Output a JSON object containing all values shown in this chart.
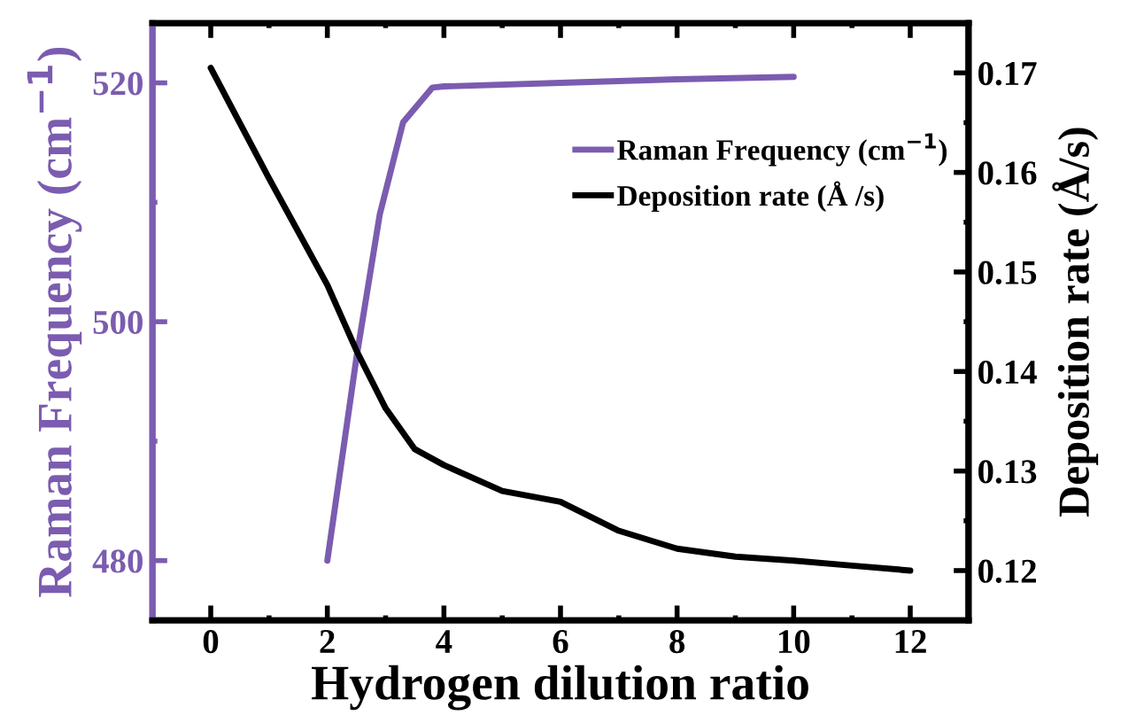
{
  "chart_data": {
    "type": "line",
    "xlabel": "Hydrogen dilution ratio",
    "ylabel": "Raman Frequency (cm$^{−1}$)",
    "y2label": "Deposition rate (Å/s)",
    "xlim": [
      -1,
      13
    ],
    "xticks": [
      0,
      2,
      4,
      6,
      8,
      10,
      12
    ],
    "ylim": [
      475,
      525
    ],
    "yticks": [
      480,
      500,
      520
    ],
    "y2lim": [
      0.115,
      0.175
    ],
    "y2ticks": [
      0.12,
      0.13,
      0.14,
      0.15,
      0.16,
      0.17
    ],
    "legend": "upper right",
    "grid": false,
    "marker": "none",
    "line_style": "solid",
    "series": [
      {
        "name": "Raman Frequency (cm$^{−1}$)",
        "color": "#7b5cb0",
        "x": [
          2,
          2.5,
          2.9,
          3.3,
          3.8,
          4,
          6,
          8,
          10
        ],
        "values": [
          480,
          497,
          509,
          516.7,
          519.6,
          519.7,
          520,
          520.3,
          520.5
        ]
      },
      {
        "name": "Deposition rate (Å /s)",
        "color": "#000000",
        "axis": "y2",
        "x": [
          0,
          1,
          2,
          2.5,
          3,
          3.5,
          4,
          5,
          6,
          7,
          8,
          9,
          10,
          11,
          12
        ],
        "values": [
          0.1705,
          0.1594,
          0.1487,
          0.1421,
          0.1363,
          0.1322,
          0.1306,
          0.128,
          0.1269,
          0.124,
          0.1222,
          0.1214,
          0.121,
          0.1205,
          0.12
        ]
      }
    ]
  }
}
